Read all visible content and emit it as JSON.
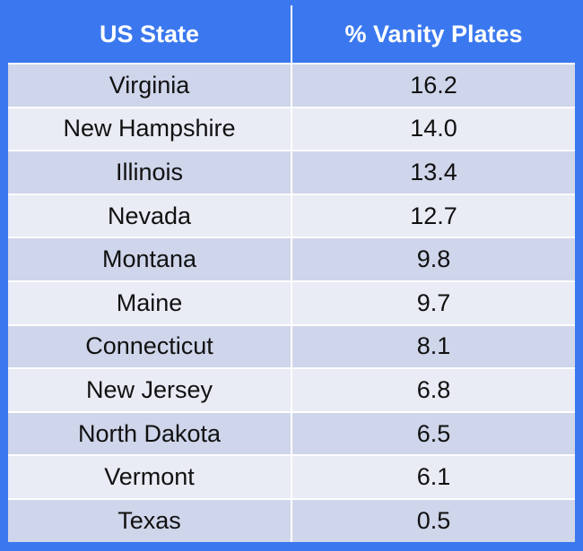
{
  "chart_data": {
    "type": "table",
    "columns": [
      "US State",
      "% Vanity Plates"
    ],
    "rows": [
      {
        "state": "Virginia",
        "value": "16.2"
      },
      {
        "state": "New Hampshire",
        "value": "14.0"
      },
      {
        "state": "Illinois",
        "value": "13.4"
      },
      {
        "state": "Nevada",
        "value": "12.7"
      },
      {
        "state": "Montana",
        "value": "9.8"
      },
      {
        "state": "Maine",
        "value": "9.7"
      },
      {
        "state": "Connecticut",
        "value": "8.1"
      },
      {
        "state": "New Jersey",
        "value": "6.8"
      },
      {
        "state": "North Dakota",
        "value": "6.5"
      },
      {
        "state": "Vermont",
        "value": "6.1"
      },
      {
        "state": "Texas",
        "value": "0.5"
      }
    ],
    "header_color": "#3b78ef",
    "row_color_odd": "#cfd5ea",
    "row_color_even": "#e9ebf5"
  }
}
